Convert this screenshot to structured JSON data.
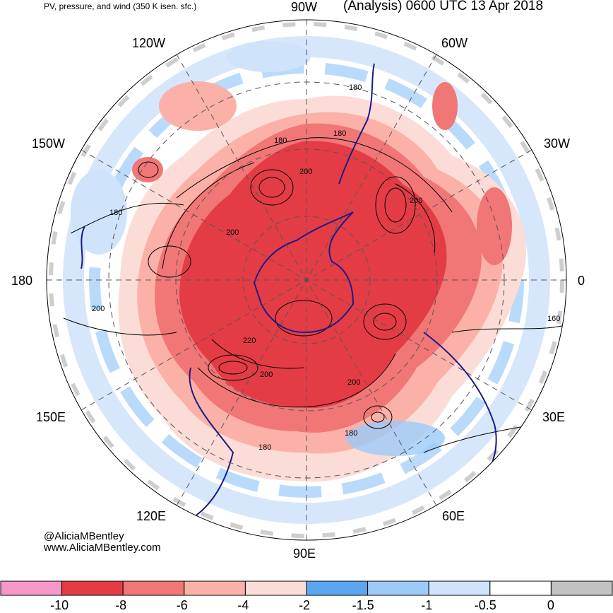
{
  "header": {
    "left_title": "PV, pressure, and wind (350 K isen. sfc.)",
    "right_title": "(Analysis) 0600 UTC 13 Apr 2018"
  },
  "longitude_labels": {
    "lon_90w": "90W",
    "lon_60w": "60W",
    "lon_30w": "30W",
    "lon_0": "0",
    "lon_30e": "30E",
    "lon_60e": "60E",
    "lon_90e": "90E",
    "lon_120e": "120E",
    "lon_150e": "150E",
    "lon_180": "180",
    "lon_150w": "150W",
    "lon_120w": "120W"
  },
  "contour_labels": {
    "c1": "180",
    "c2": "180",
    "c3": "180",
    "c4": "200",
    "c5": "200",
    "c6": "180",
    "c7": "200",
    "c8": "200",
    "c9": "220",
    "c10": "200",
    "c11": "200",
    "c12": "180",
    "c13": "180",
    "c14": "160"
  },
  "credits": {
    "handle": "@AliciaMBentley",
    "website": "www.AliciaMBentley.com"
  },
  "colorbar": {
    "bins": [
      {
        "color": "#f598c8"
      },
      {
        "color": "#e43c44"
      },
      {
        "color": "#f17676"
      },
      {
        "color": "#fbb1a7"
      },
      {
        "color": "#fcdcd6"
      },
      {
        "color": "#5ba6f1"
      },
      {
        "color": "#9ccaf9"
      },
      {
        "color": "#cfe3fb"
      },
      {
        "color": "#ffffff"
      },
      {
        "color": "#c2c2c2"
      }
    ],
    "tick_labels": [
      "-10",
      "-8",
      "-6",
      "-4",
      "-2",
      "-1.5",
      "-1",
      "-0.5",
      "0"
    ]
  },
  "colors": {
    "strong_pv": "#e43c44",
    "medium_pv": "#f17676",
    "light_pv": "#fbb1a7",
    "faint_pv": "#fcdcd6",
    "positive_blue": "#9ccaf9",
    "light_blue": "#cfe3fb",
    "grey_band": "#c2c2c2",
    "coastline": "#1a1a8c"
  }
}
